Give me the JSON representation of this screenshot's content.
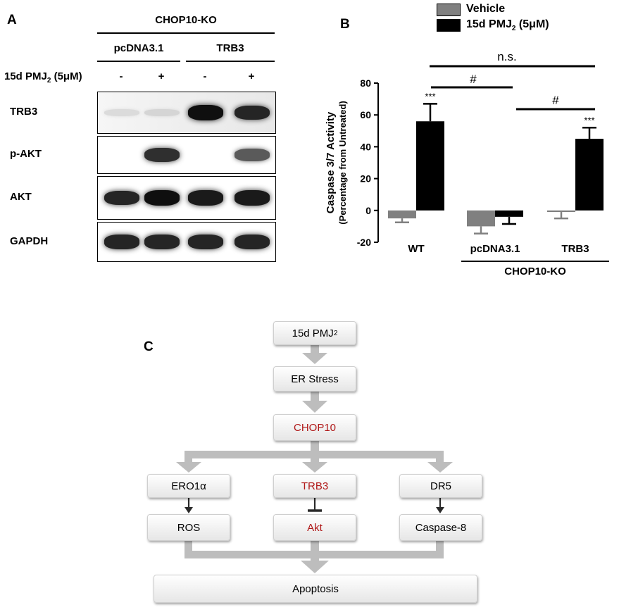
{
  "panel_a": {
    "letter": "A",
    "group_label": "CHOP10-KO",
    "subgroups": [
      "pcDNA3.1",
      "TRB3"
    ],
    "treatment_label": "15d PMJ",
    "treatment_sub": "2",
    "treatment_suffix": " (5μM)",
    "treatment_signs": [
      "-",
      "+",
      "-",
      "+"
    ],
    "blots": [
      {
        "label": "TRB3",
        "intensities": [
          0.05,
          0.08,
          1.0,
          0.9
        ]
      },
      {
        "label": "p-AKT",
        "intensities": [
          0.0,
          0.85,
          0.0,
          0.65
        ]
      },
      {
        "label": "AKT",
        "intensities": [
          0.9,
          1.0,
          0.95,
          0.95
        ]
      },
      {
        "label": "GAPDH",
        "intensities": [
          0.9,
          0.9,
          0.9,
          0.9
        ]
      }
    ]
  },
  "panel_b": {
    "letter": "B",
    "legend": [
      {
        "label": "Vehicle",
        "color": "#808080"
      },
      {
        "label": "15d PMJ",
        "sub": "2",
        "suffix": " (5μM)",
        "color": "#000000"
      }
    ],
    "ylabel_line1": "Caspase 3/7 Activity",
    "ylabel_line2": "(Percentage from Untreated)",
    "group_label": "CHOP10-KO",
    "annotations": {
      "ns": "n.s.",
      "hash": "#",
      "stars": "***"
    }
  },
  "chart_data": {
    "type": "bar",
    "categories": [
      "WT",
      "pcDNA3.1",
      "TRB3"
    ],
    "series": [
      {
        "name": "Vehicle",
        "values": [
          -5,
          -10,
          -1
        ],
        "errors": [
          2.5,
          4.5,
          4
        ]
      },
      {
        "name": "15d PMJ2 (5μM)",
        "values": [
          56,
          -4,
          45
        ],
        "errors": [
          11,
          4.5,
          7
        ]
      }
    ],
    "ylim": [
      -20,
      80
    ],
    "yticks": [
      -20,
      0,
      20,
      40,
      60,
      80
    ],
    "xlabel": "",
    "ylabel": "Caspase 3/7 Activity (Percentage from Untreated)",
    "grid": false
  },
  "panel_c": {
    "letter": "C",
    "nodes": {
      "pmj": "15d PMJ",
      "pmj_sub": "2",
      "er": "ER Stress",
      "chop": "CHOP10",
      "ero": "ERO1α",
      "trb3": "TRB3",
      "dr5": "DR5",
      "ros": "ROS",
      "akt": "Akt",
      "casp8": "Caspase-8",
      "apoptosis": "Apoptosis"
    }
  }
}
